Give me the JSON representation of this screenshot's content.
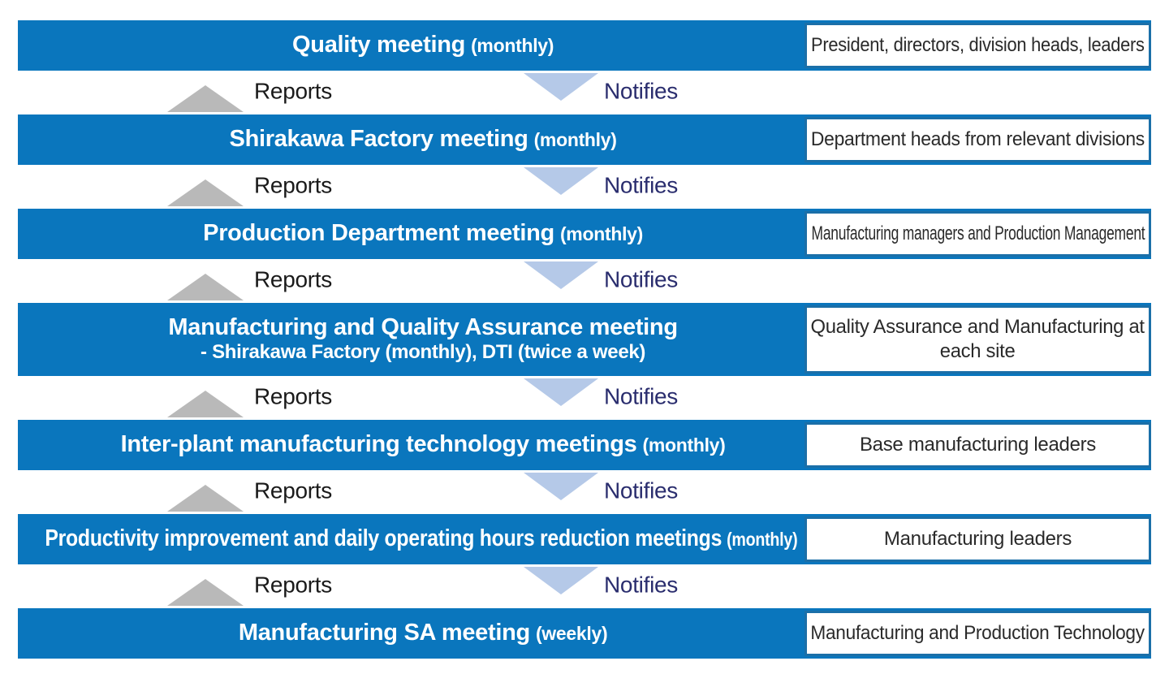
{
  "colors": {
    "bar_blue": "#0a76bd",
    "box_border": "#1b6fa8",
    "box_bg": "#ffffff",
    "bar_text": "#ffffff",
    "attendee_text": "#2a2a2a",
    "reports_arrow": "#b9b9b9",
    "reports_text": "#1a1a1a",
    "notifies_arrow": "#b5c9e8",
    "notifies_text": "#2a2d6e"
  },
  "connector": {
    "reports_label": "Reports",
    "notifies_label": "Notifies"
  },
  "rows": [
    {
      "meeting": "Quality meeting",
      "frequency": "(monthly)",
      "attendees": "President, directors, division heads, leaders"
    },
    {
      "meeting": "Shirakawa Factory meeting",
      "frequency": "(monthly)",
      "attendees": "Department heads from relevant divisions"
    },
    {
      "meeting": "Production Department meeting",
      "frequency": "(monthly)",
      "attendees": "Manufacturing managers and Production Management"
    },
    {
      "meeting": "Manufacturing and Quality Assurance meeting",
      "frequency": "",
      "detail": "- Shirakawa Factory (monthly), DTI (twice a week)",
      "attendees": "Quality Assurance and Manufacturing at\neach site"
    },
    {
      "meeting": "Inter-plant manufacturing technology meetings",
      "frequency": "(monthly)",
      "attendees": "Base manufacturing leaders"
    },
    {
      "meeting": "Productivity improvement and daily operating hours reduction meetings",
      "frequency": "(monthly)",
      "attendees": "Manufacturing leaders"
    },
    {
      "meeting": "Manufacturing SA meeting",
      "frequency": "(weekly)",
      "attendees": "Manufacturing and Production Technology"
    }
  ]
}
